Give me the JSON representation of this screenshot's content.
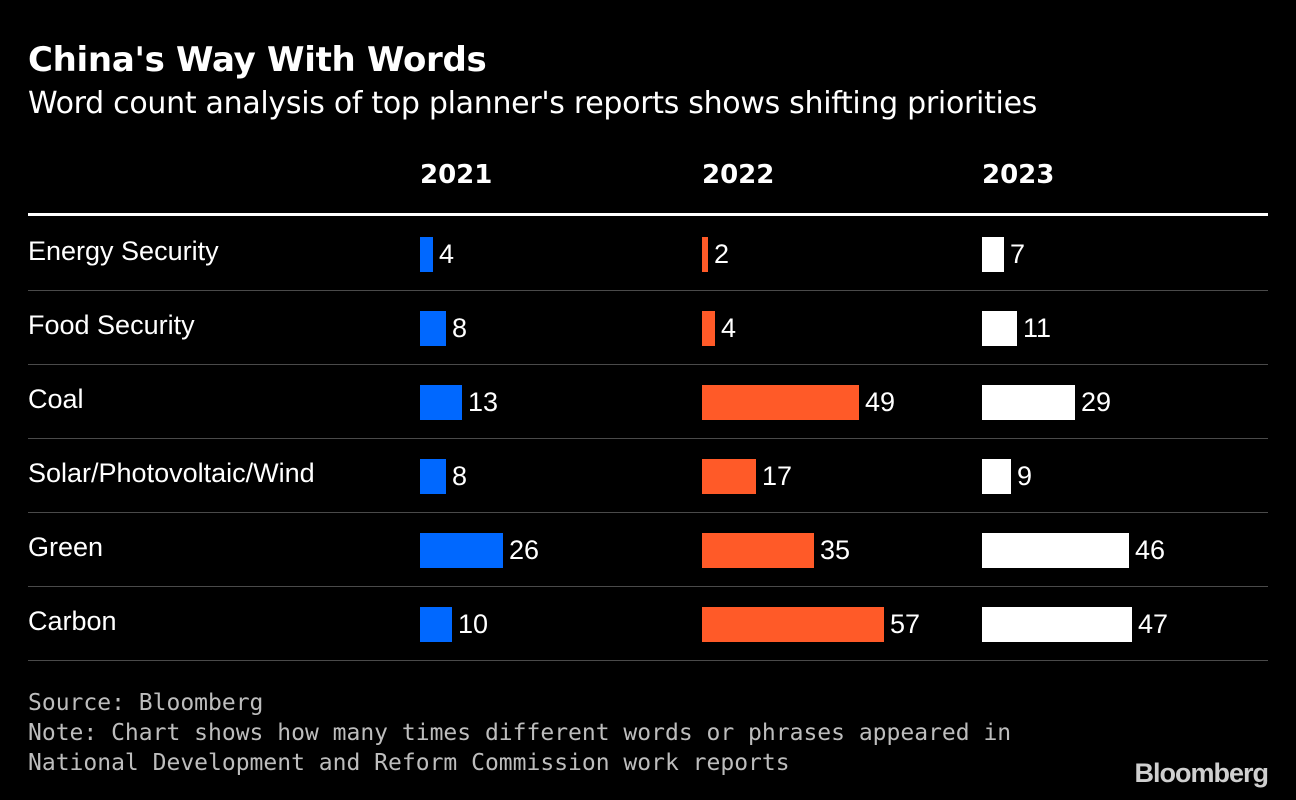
{
  "title": "China's Way With Words",
  "subtitle": "Word count analysis of top planner's reports shows shifting priorities",
  "chart_data": {
    "type": "bar",
    "title": "China's Way With Words",
    "subtitle": "Word count analysis of top planner's reports shows shifting priorities",
    "categories": [
      "Energy Security",
      "Food Security",
      "Coal",
      "Solar/Photovoltaic/Wind",
      "Green",
      "Carbon"
    ],
    "series": [
      {
        "name": "2021",
        "color": "#0068ff",
        "values": [
          4,
          8,
          13,
          8,
          26,
          10
        ]
      },
      {
        "name": "2022",
        "color": "#ff5a28",
        "values": [
          2,
          4,
          49,
          17,
          35,
          57
        ]
      },
      {
        "name": "2023",
        "color": "#ffffff",
        "values": [
          7,
          11,
          29,
          9,
          46,
          47
        ]
      }
    ],
    "orientation": "horizontal",
    "xlabel": "",
    "ylabel": ""
  },
  "footer": {
    "source": "Source: Bloomberg",
    "note_line1": "Note: Chart shows how many times different words or phrases appeared in",
    "note_line2": "National Development and Reform Commission work reports"
  },
  "logo": "Bloomberg"
}
